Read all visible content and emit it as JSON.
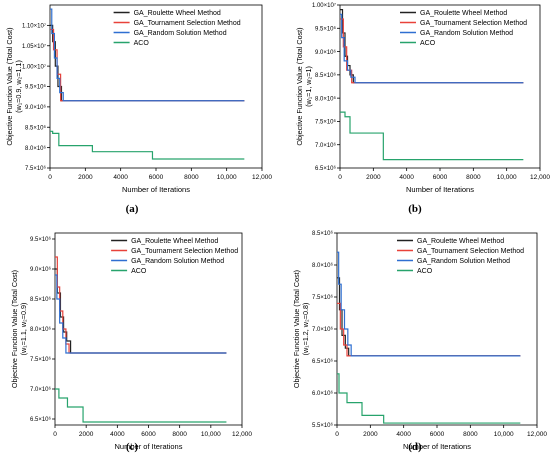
{
  "figure": {
    "panels": [
      {
        "caption": "(a)",
        "ylabel_line1": "Objective Function Value (Total Cost)",
        "ylabel_line2": "(w₁=0.9, w₂=1.1)",
        "xlabel": "Number of Iterations"
      },
      {
        "caption": "(b)",
        "ylabel_line1": "Objective Function Value (Total Cost)",
        "ylabel_line2": "(w₁=1, w₂=1)",
        "xlabel": "Number of Iterations"
      },
      {
        "caption": "(c)",
        "ylabel_line1": "Objective Function Value (Total Cost)",
        "ylabel_line2": "(w₁=1.1, w₂=0.9)",
        "xlabel": "Number of Iterations"
      },
      {
        "caption": "(d)",
        "ylabel_line1": "Objective Function Value (Total Cost)",
        "ylabel_line2": "(w₁=1.2, w₂=0.8)",
        "xlabel": "Number of Iterations"
      }
    ]
  },
  "colors": {
    "GA_Roulette Wheel Method": "#222222",
    "GA_Tournament Selection Method": "#e8423a",
    "GA_Random Solution Method": "#2f6fd1",
    "ACO": "#27a36c"
  },
  "chart_data": [
    {
      "type": "line",
      "caption": "(a)",
      "xlabel": "Number of Iterations",
      "ylabel": "Objective Function Value (Total Cost) (w₁=0.9, w₂=1.1)",
      "xlim": [
        0,
        12000
      ],
      "ylim": [
        7500000,
        11500000
      ],
      "xticks": [
        0,
        2000,
        4000,
        6000,
        8000,
        10000,
        12000
      ],
      "xtick_labels": [
        "0",
        "2000",
        "4000",
        "6000",
        "8000",
        "10,000",
        "12,000"
      ],
      "yticks": [
        7500000,
        8000000,
        8500000,
        9000000,
        9500000,
        10000000,
        10500000,
        11000000
      ],
      "ytick_labels": [
        "7.5×10⁶",
        "8.0×10⁶",
        "8.5×10⁶",
        "9.0×10⁶",
        "9.5×10⁶",
        "1.00×10⁷",
        "1.05×10⁷",
        "1.10×10⁷"
      ],
      "legend_position": "top-right",
      "series": [
        {
          "name": "GA_Roulette Wheel Method",
          "x": [
            0,
            150,
            150,
            300,
            300,
            450,
            450,
            650,
            650,
            11000
          ],
          "y": [
            11000000,
            11000000,
            10600000,
            10600000,
            10000000,
            10000000,
            9500000,
            9500000,
            9150000,
            9150000
          ]
        },
        {
          "name": "GA_Tournament Selection Method",
          "x": [
            0,
            200,
            200,
            400,
            400,
            600,
            600,
            11000
          ],
          "y": [
            10900000,
            10900000,
            10400000,
            10400000,
            9800000,
            9800000,
            9150000,
            9150000
          ]
        },
        {
          "name": "GA_Random Solution Method",
          "x": [
            0,
            100,
            100,
            250,
            250,
            400,
            400,
            550,
            550,
            750,
            750,
            11000
          ],
          "y": [
            11400000,
            11400000,
            10800000,
            10800000,
            10200000,
            10200000,
            9700000,
            9700000,
            9350000,
            9350000,
            9150000,
            9150000
          ]
        },
        {
          "name": "ACO",
          "x": [
            0,
            150,
            150,
            500,
            500,
            2400,
            2400,
            5800,
            5800,
            11000
          ],
          "y": [
            8400000,
            8400000,
            8350000,
            8350000,
            8050000,
            8050000,
            7900000,
            7900000,
            7720000,
            7720000
          ]
        }
      ]
    },
    {
      "type": "line",
      "caption": "(b)",
      "xlabel": "Number of Iterations",
      "ylabel": "Objective Function Value (Total Cost) (w₁=1, w₂=1)",
      "xlim": [
        0,
        12000
      ],
      "ylim": [
        6500000,
        10000000
      ],
      "xticks": [
        0,
        2000,
        4000,
        6000,
        8000,
        10000,
        12000
      ],
      "xtick_labels": [
        "0",
        "2000",
        "4000",
        "6000",
        "8000",
        "10,000",
        "12,000"
      ],
      "yticks": [
        6500000,
        7000000,
        7500000,
        8000000,
        8500000,
        9000000,
        9500000,
        10000000
      ],
      "ytick_labels": [
        "6.5×10⁶",
        "7.0×10⁶",
        "7.5×10⁶",
        "8.0×10⁶",
        "8.5×10⁶",
        "9.0×10⁶",
        "9.5×10⁶",
        "1.00×10⁷"
      ],
      "legend_position": "top-right",
      "series": [
        {
          "name": "GA_Roulette Wheel Method",
          "x": [
            0,
            150,
            150,
            300,
            300,
            450,
            450,
            600,
            600,
            800,
            800,
            11000
          ],
          "y": [
            9900000,
            9900000,
            9400000,
            9400000,
            8900000,
            8900000,
            8700000,
            8700000,
            8500000,
            8500000,
            8330000,
            8330000
          ]
        },
        {
          "name": "GA_Tournament Selection Method",
          "x": [
            0,
            200,
            200,
            400,
            400,
            700,
            700,
            11000
          ],
          "y": [
            9700000,
            9700000,
            9100000,
            9100000,
            8600000,
            8600000,
            8330000,
            8330000
          ]
        },
        {
          "name": "GA_Random Solution Method",
          "x": [
            0,
            100,
            100,
            250,
            250,
            450,
            450,
            650,
            650,
            900,
            900,
            11000
          ],
          "y": [
            9800000,
            9800000,
            9300000,
            9300000,
            8800000,
            8800000,
            8600000,
            8600000,
            8450000,
            8450000,
            8330000,
            8330000
          ]
        },
        {
          "name": "ACO",
          "x": [
            0,
            300,
            300,
            600,
            600,
            2600,
            2600,
            11000
          ],
          "y": [
            7700000,
            7700000,
            7600000,
            7600000,
            7250000,
            7250000,
            6680000,
            6680000
          ]
        }
      ]
    },
    {
      "type": "line",
      "caption": "(c)",
      "xlabel": "Number of Iterations",
      "ylabel": "Objective Function Value (Total Cost) (w₁=1.1, w₂=0.9)",
      "xlim": [
        0,
        12000
      ],
      "ylim": [
        6400000,
        9600000
      ],
      "xticks": [
        0,
        2000,
        4000,
        6000,
        8000,
        10000,
        12000
      ],
      "xtick_labels": [
        "0",
        "2000",
        "4000",
        "6000",
        "8000",
        "10,000",
        "12,000"
      ],
      "yticks": [
        6500000,
        7000000,
        7500000,
        8000000,
        8500000,
        9000000,
        9500000
      ],
      "ytick_labels": [
        "6.5×10⁶",
        "7.0×10⁶",
        "7.5×10⁶",
        "8.0×10⁶",
        "8.5×10⁶",
        "9.0×10⁶",
        "9.5×10⁶"
      ],
      "legend_position": "top-right",
      "series": [
        {
          "name": "GA_Roulette Wheel Method",
          "x": [
            0,
            150,
            150,
            350,
            350,
            550,
            550,
            750,
            750,
            1000,
            1000,
            11000
          ],
          "y": [
            9000000,
            9000000,
            8600000,
            8600000,
            8200000,
            8200000,
            7950000,
            7950000,
            7800000,
            7800000,
            7600000,
            7600000
          ]
        },
        {
          "name": "GA_Tournament Selection Method",
          "x": [
            0,
            150,
            150,
            300,
            300,
            500,
            500,
            700,
            700,
            900,
            900,
            11000
          ],
          "y": [
            9200000,
            9200000,
            8700000,
            8700000,
            8300000,
            8300000,
            8000000,
            8000000,
            7750000,
            7750000,
            7600000,
            7600000
          ]
        },
        {
          "name": "GA_Random Solution Method",
          "x": [
            0,
            120,
            120,
            300,
            300,
            500,
            500,
            700,
            700,
            11000
          ],
          "y": [
            8900000,
            8900000,
            8500000,
            8500000,
            8100000,
            8100000,
            7850000,
            7850000,
            7600000,
            7600000
          ]
        },
        {
          "name": "ACO",
          "x": [
            0,
            250,
            250,
            800,
            800,
            1800,
            1800,
            11000
          ],
          "y": [
            7000000,
            7000000,
            6850000,
            6850000,
            6700000,
            6700000,
            6450000,
            6450000
          ]
        }
      ]
    },
    {
      "type": "line",
      "caption": "(d)",
      "xlabel": "Number of Iterations",
      "ylabel": "Objective Function Value (Total Cost) (w₁=1.2, w₂=0.8)",
      "xlim": [
        0,
        12000
      ],
      "ylim": [
        5500000,
        8500000
      ],
      "xticks": [
        0,
        2000,
        4000,
        6000,
        8000,
        10000,
        12000
      ],
      "xtick_labels": [
        "0",
        "2000",
        "4000",
        "6000",
        "8000",
        "10,000",
        "12,000"
      ],
      "yticks": [
        5500000,
        6000000,
        6500000,
        7000000,
        7500000,
        8000000,
        8500000
      ],
      "ytick_labels": [
        "5.5×10⁶",
        "6.0×10⁶",
        "6.5×10⁶",
        "7.0×10⁶",
        "7.5×10⁶",
        "8.0×10⁶",
        "8.5×10⁶"
      ],
      "legend_position": "top-right",
      "series": [
        {
          "name": "GA_Roulette Wheel Method",
          "x": [
            0,
            150,
            150,
            300,
            300,
            500,
            500,
            700,
            700,
            11000
          ],
          "y": [
            7800000,
            7800000,
            7300000,
            7300000,
            6900000,
            6900000,
            6700000,
            6700000,
            6580000,
            6580000
          ]
        },
        {
          "name": "GA_Tournament Selection Method",
          "x": [
            0,
            200,
            200,
            400,
            400,
            600,
            600,
            11000
          ],
          "y": [
            7400000,
            7400000,
            7000000,
            7000000,
            6750000,
            6750000,
            6580000,
            6580000
          ]
        },
        {
          "name": "GA_Random Solution Method",
          "x": [
            0,
            100,
            100,
            250,
            250,
            450,
            450,
            650,
            650,
            850,
            850,
            11000
          ],
          "y": [
            8200000,
            8200000,
            7700000,
            7700000,
            7300000,
            7300000,
            7000000,
            7000000,
            6750000,
            6750000,
            6580000,
            6580000
          ]
        },
        {
          "name": "ACO",
          "x": [
            0,
            120,
            120,
            600,
            600,
            1500,
            1500,
            2800,
            2800,
            11000
          ],
          "y": [
            6300000,
            6300000,
            6000000,
            6000000,
            5850000,
            5850000,
            5650000,
            5650000,
            5530000,
            5530000
          ]
        }
      ]
    }
  ]
}
